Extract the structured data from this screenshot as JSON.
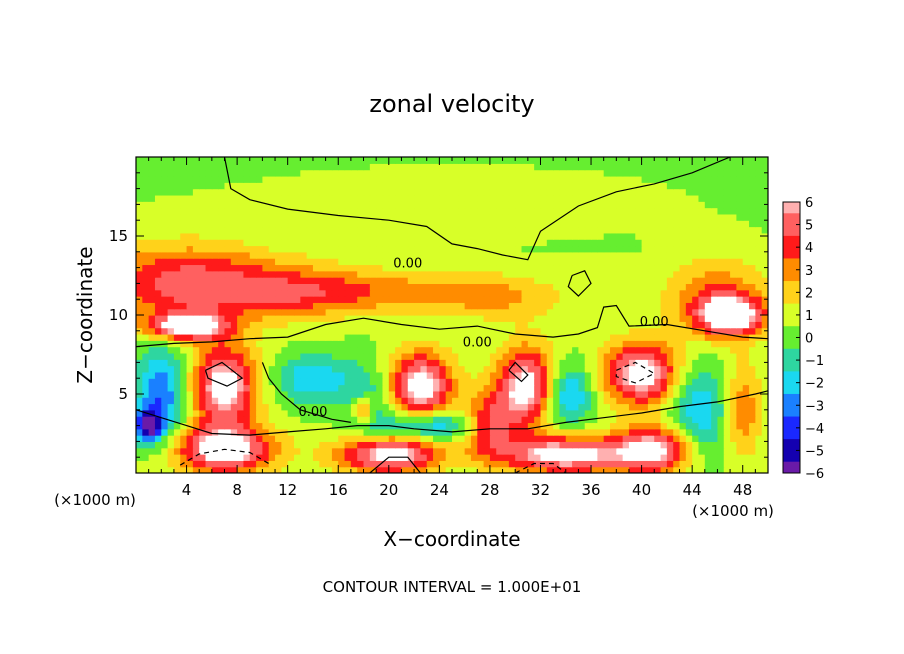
{
  "chart_data": {
    "type": "heatmap",
    "title": "zonal velocity",
    "xlabel": "X−coordinate",
    "ylabel": "Z−coordinate",
    "x_unit_left": "(×1000 m)",
    "x_unit_right": "(×1000 m)",
    "xlim": [
      0,
      50
    ],
    "ylim": [
      0,
      20
    ],
    "x_ticks": [
      4,
      8,
      12,
      16,
      20,
      24,
      28,
      32,
      36,
      40,
      44,
      48
    ],
    "y_ticks": [
      5,
      10,
      15
    ],
    "contour_label": "0.00",
    "footer": "CONTOUR INTERVAL = 1.000E+01",
    "colorbar": {
      "levels": [
        6,
        5,
        4,
        3,
        2,
        1,
        0,
        -1,
        -2,
        -3,
        -4,
        -5,
        -6
      ],
      "labels": [
        "6",
        "5",
        "4",
        "3",
        "2",
        "1",
        "0",
        "−1",
        "−2",
        "−3",
        "−4",
        "−5",
        "−6"
      ],
      "colors": [
        "#ffb0b0",
        "#ff6060",
        "#ff1a1a",
        "#ff8c00",
        "#ffd21a",
        "#d8ff28",
        "#66ee30",
        "#2ed6a0",
        "#1ad8f0",
        "#1a80ff",
        "#1a28ff",
        "#1400b0",
        "#6a1aa8"
      ]
    },
    "blobs": [
      {
        "x": 25,
        "z": 17,
        "rx": 30,
        "rz": 4,
        "value": 0.3
      },
      {
        "x": 4,
        "z": 12,
        "rx": 7,
        "rz": 2.5,
        "value": 4.5
      },
      {
        "x": 13,
        "z": 11.5,
        "rx": 6,
        "rz": 1.6,
        "value": 3
      },
      {
        "x": 22,
        "z": 11.5,
        "rx": 8,
        "rz": 1.3,
        "value": 2
      },
      {
        "x": 29,
        "z": 11,
        "rx": 5,
        "rz": 1.5,
        "value": 1.5
      },
      {
        "x": 46,
        "z": 11,
        "rx": 4,
        "rz": 2.5,
        "value": 3
      },
      {
        "x": 4,
        "z": 9.3,
        "rx": 3,
        "rz": 0.8,
        "value": 6.5
      },
      {
        "x": 47,
        "z": 10,
        "rx": 2.5,
        "rz": 1.2,
        "value": 6.5
      },
      {
        "x": 7,
        "z": 5.5,
        "rx": 2.6,
        "rz": 2.6,
        "value": 6.5
      },
      {
        "x": 2,
        "z": 5,
        "rx": 2,
        "rz": 3,
        "value": -4
      },
      {
        "x": 1,
        "z": 3,
        "rx": 1,
        "rz": 1,
        "value": -6
      },
      {
        "x": 14,
        "z": 6,
        "rx": 3,
        "rz": 1.5,
        "value": -3
      },
      {
        "x": 18.5,
        "z": 4.5,
        "rx": 2,
        "rz": 2.5,
        "value": -2
      },
      {
        "x": 18,
        "z": 4,
        "rx": 0.8,
        "rz": 0.8,
        "value": 4
      },
      {
        "x": 22.5,
        "z": 5.5,
        "rx": 2.6,
        "rz": 2.2,
        "value": 6.5
      },
      {
        "x": 23,
        "z": 3,
        "rx": 3.5,
        "rz": 1,
        "value": -4
      },
      {
        "x": 31,
        "z": 5.5,
        "rx": 2.5,
        "rz": 2.5,
        "value": 6.5
      },
      {
        "x": 28,
        "z": 3,
        "rx": 2,
        "rz": 2,
        "value": 4
      },
      {
        "x": 34,
        "z": 5,
        "rx": 2,
        "rz": 2,
        "value": -4
      },
      {
        "x": 40,
        "z": 6.3,
        "rx": 3,
        "rz": 2,
        "value": 6.5
      },
      {
        "x": 44.5,
        "z": 4,
        "rx": 2.5,
        "rz": 3,
        "value": -3
      },
      {
        "x": 48,
        "z": 4,
        "rx": 1.5,
        "rz": 3,
        "value": 3
      },
      {
        "x": 7,
        "z": 1.5,
        "rx": 4,
        "rz": 1.5,
        "value": 6.5
      },
      {
        "x": 20,
        "z": 1.2,
        "rx": 4,
        "rz": 1.2,
        "value": 6.5
      },
      {
        "x": 34,
        "z": 1.2,
        "rx": 5,
        "rz": 1.2,
        "value": 6.5
      },
      {
        "x": 41,
        "z": 1.5,
        "rx": 3,
        "rz": 1.5,
        "value": 6
      }
    ],
    "contours": [
      {
        "style": "solid",
        "points": [
          [
            7,
            20
          ],
          [
            7.5,
            18
          ],
          [
            9,
            17.3
          ],
          [
            12,
            16.7
          ],
          [
            16,
            16.3
          ],
          [
            20,
            16
          ],
          [
            23,
            15.6
          ],
          [
            25,
            14.5
          ],
          [
            27,
            14.2
          ],
          [
            29,
            13.8
          ],
          [
            31,
            13.5
          ],
          [
            32,
            15.3
          ],
          [
            35,
            16.9
          ],
          [
            38,
            17.8
          ],
          [
            41,
            18.3
          ],
          [
            44,
            19
          ],
          [
            47,
            20
          ]
        ]
      },
      {
        "style": "solid",
        "points": [
          [
            0,
            8
          ],
          [
            3,
            8.2
          ],
          [
            6,
            8.3
          ],
          [
            9,
            8.5
          ],
          [
            12,
            8.6
          ],
          [
            15,
            9.4
          ],
          [
            18,
            9.8
          ],
          [
            21,
            9.4
          ],
          [
            24,
            9.1
          ],
          [
            27,
            9.3
          ],
          [
            30,
            8.8
          ],
          [
            33,
            8.6
          ],
          [
            35,
            8.8
          ],
          [
            36.5,
            9.2
          ],
          [
            37,
            10.5
          ],
          [
            38,
            10.6
          ],
          [
            39,
            9.3
          ],
          [
            42,
            9.4
          ],
          [
            45,
            9
          ],
          [
            48,
            8.6
          ],
          [
            50,
            8.5
          ]
        ]
      },
      {
        "style": "solid",
        "points": [
          [
            10,
            7
          ],
          [
            10.5,
            6
          ],
          [
            11.5,
            5
          ],
          [
            13,
            4
          ],
          [
            15.5,
            3.4
          ],
          [
            17,
            3.2
          ]
        ]
      },
      {
        "style": "solid",
        "points": [
          [
            0,
            4
          ],
          [
            2,
            3.5
          ],
          [
            4,
            3
          ],
          [
            6,
            2.5
          ],
          [
            9,
            2.4
          ],
          [
            12,
            2.6
          ],
          [
            15,
            2.8
          ],
          [
            17.5,
            3
          ],
          [
            20,
            3
          ],
          [
            22,
            2.8
          ],
          [
            25,
            2.6
          ],
          [
            28,
            2.8
          ],
          [
            31,
            2.8
          ],
          [
            34,
            3.2
          ],
          [
            37,
            3.5
          ],
          [
            40,
            3.8
          ],
          [
            43,
            4.2
          ],
          [
            46,
            4.5
          ],
          [
            49,
            5
          ],
          [
            50,
            5.2
          ]
        ]
      },
      {
        "style": "solid",
        "points": [
          [
            34.5,
            12.5
          ],
          [
            35.5,
            12.8
          ],
          [
            36,
            12
          ],
          [
            35,
            11.2
          ],
          [
            34.2,
            11.8
          ],
          [
            34.5,
            12.5
          ]
        ]
      },
      {
        "style": "solid",
        "points": [
          [
            5.5,
            6.5
          ],
          [
            6.8,
            7
          ],
          [
            8.4,
            6
          ],
          [
            7.2,
            5.5
          ],
          [
            5.7,
            6
          ],
          [
            5.5,
            6.5
          ]
        ]
      },
      {
        "style": "solid",
        "points": [
          [
            29.5,
            6.5
          ],
          [
            30,
            7
          ],
          [
            31,
            6.2
          ],
          [
            30.5,
            5.8
          ],
          [
            29.5,
            6.5
          ]
        ]
      },
      {
        "style": "dashed",
        "points": [
          [
            38,
            6.5
          ],
          [
            39.5,
            7
          ],
          [
            41,
            6.3
          ],
          [
            39.5,
            5.7
          ],
          [
            38,
            6.1
          ],
          [
            38,
            6.5
          ]
        ]
      },
      {
        "style": "dashed",
        "points": [
          [
            3.5,
            0.5
          ],
          [
            5,
            1.2
          ],
          [
            7,
            1.5
          ],
          [
            9,
            1.3
          ],
          [
            10.5,
            0.6
          ]
        ]
      },
      {
        "style": "dashed",
        "points": [
          [
            30,
            0
          ],
          [
            31.5,
            0.6
          ],
          [
            33,
            0.6
          ],
          [
            34,
            0
          ]
        ]
      },
      {
        "style": "solid",
        "points": [
          [
            18.5,
            0
          ],
          [
            20,
            1
          ],
          [
            21.5,
            1
          ],
          [
            22.5,
            0
          ]
        ]
      }
    ],
    "contour_labels": [
      {
        "x": 21.5,
        "z": 13,
        "text": "0.00"
      },
      {
        "x": 41,
        "z": 9.3,
        "text": "0.00"
      },
      {
        "x": 14,
        "z": 3.6,
        "text": "0.00"
      },
      {
        "x": 27,
        "z": 8,
        "text": "0.00"
      }
    ]
  }
}
